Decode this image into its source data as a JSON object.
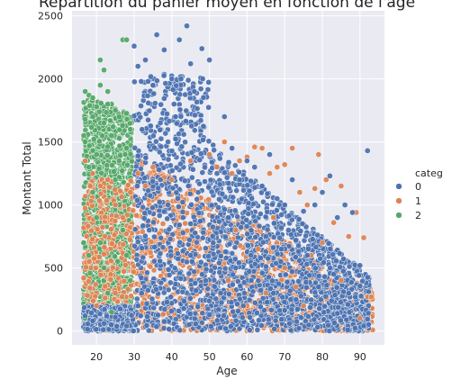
{
  "chart_data": {
    "type": "scatter",
    "title": "Répartition du panier moyen en fonction de l'âge",
    "xlabel": "Age",
    "ylabel": "Montant Total",
    "xlim": [
      13.5,
      96.5
    ],
    "ylim": [
      -110,
      2540
    ],
    "xticks": [
      "20",
      "30",
      "40",
      "50",
      "60",
      "70",
      "80",
      "90"
    ],
    "yticks": [
      "0",
      "500",
      "1000",
      "1500",
      "2000",
      "2500"
    ],
    "grid": true,
    "legend": {
      "title": "categ",
      "placement": "right"
    },
    "series": [
      {
        "name": "0",
        "color": "#4c72b0",
        "points": [
          [
            17,
            120
          ],
          [
            19,
            80
          ],
          [
            22,
            60
          ],
          [
            25,
            110
          ],
          [
            28,
            40
          ],
          [
            30,
            2260
          ],
          [
            31,
            2100
          ],
          [
            33,
            2150
          ],
          [
            35,
            1950
          ],
          [
            36,
            2350
          ],
          [
            38,
            2230
          ],
          [
            40,
            2000
          ],
          [
            42,
            2310
          ],
          [
            44,
            2420
          ],
          [
            45,
            2120
          ],
          [
            46,
            1900
          ],
          [
            48,
            2240
          ],
          [
            50,
            2150
          ],
          [
            52,
            1250
          ],
          [
            54,
            1700
          ],
          [
            56,
            1450
          ],
          [
            58,
            1200
          ],
          [
            60,
            1350
          ],
          [
            62,
            1300
          ],
          [
            64,
            1150
          ],
          [
            66,
            1400
          ],
          [
            68,
            1050
          ],
          [
            70,
            1000
          ],
          [
            72,
            1200
          ],
          [
            75,
            950
          ],
          [
            78,
            1000
          ],
          [
            80,
            1100
          ],
          [
            82,
            1230
          ],
          [
            84,
            900
          ],
          [
            86,
            1000
          ],
          [
            88,
            940
          ],
          [
            90,
            520
          ],
          [
            92,
            1430
          ],
          [
            32,
            300
          ],
          [
            34,
            800
          ],
          [
            37,
            1200
          ],
          [
            39,
            1500
          ],
          [
            41,
            1700
          ],
          [
            43,
            900
          ],
          [
            45,
            600
          ],
          [
            47,
            1100
          ],
          [
            49,
            400
          ],
          [
            51,
            700
          ],
          [
            53,
            300
          ],
          [
            55,
            900
          ],
          [
            57,
            500
          ],
          [
            59,
            200
          ],
          [
            61,
            600
          ],
          [
            63,
            400
          ],
          [
            65,
            750
          ],
          [
            67,
            300
          ],
          [
            69,
            550
          ],
          [
            71,
            800
          ],
          [
            73,
            250
          ],
          [
            76,
            600
          ],
          [
            79,
            350
          ],
          [
            83,
            450
          ],
          [
            87,
            300
          ],
          [
            91,
            40
          ]
        ]
      },
      {
        "name": "1",
        "color": "#dd8452",
        "points": [
          [
            17,
            1350
          ],
          [
            19,
            1250
          ],
          [
            21,
            1150
          ],
          [
            23,
            1200
          ],
          [
            25,
            1000
          ],
          [
            27,
            900
          ],
          [
            29,
            1100
          ],
          [
            31,
            1250
          ],
          [
            33,
            1150
          ],
          [
            35,
            1300
          ],
          [
            40,
            1200
          ],
          [
            45,
            1350
          ],
          [
            50,
            1400
          ],
          [
            52,
            1300
          ],
          [
            54,
            1500
          ],
          [
            56,
            1250
          ],
          [
            58,
            1350
          ],
          [
            60,
            1380
          ],
          [
            62,
            1460
          ],
          [
            64,
            1450
          ],
          [
            66,
            1250
          ],
          [
            68,
            1300
          ],
          [
            70,
            1320
          ],
          [
            72,
            1450
          ],
          [
            74,
            1100
          ],
          [
            76,
            1000
          ],
          [
            78,
            1130
          ],
          [
            79,
            1400
          ],
          [
            81,
            1200
          ],
          [
            83,
            860
          ],
          [
            85,
            1150
          ],
          [
            87,
            750
          ],
          [
            89,
            940
          ],
          [
            91,
            740
          ],
          [
            92,
            270
          ],
          [
            93,
            270
          ],
          [
            55,
            400
          ],
          [
            60,
            200
          ],
          [
            65,
            300
          ],
          [
            70,
            500
          ],
          [
            75,
            200
          ],
          [
            80,
            700
          ],
          [
            85,
            400
          ],
          [
            90,
            100
          ],
          [
            20,
            200
          ],
          [
            25,
            300
          ],
          [
            57,
            800
          ],
          [
            63,
            650
          ],
          [
            67,
            900
          ],
          [
            73,
            350
          ],
          [
            77,
            600
          ]
        ]
      },
      {
        "name": "2",
        "color": "#55a868",
        "points": [
          [
            17,
            1900
          ],
          [
            18,
            1870
          ],
          [
            19,
            1850
          ],
          [
            20,
            1780
          ],
          [
            21,
            2150
          ],
          [
            22,
            2070
          ],
          [
            23,
            1900
          ],
          [
            24,
            1800
          ],
          [
            25,
            1750
          ],
          [
            26,
            1700
          ],
          [
            27,
            2310
          ],
          [
            28,
            2310
          ],
          [
            29,
            1600
          ],
          [
            17,
            1500
          ],
          [
            18,
            1300
          ],
          [
            19,
            1100
          ],
          [
            20,
            900
          ],
          [
            21,
            700
          ],
          [
            22,
            500
          ],
          [
            23,
            300
          ],
          [
            24,
            150
          ],
          [
            25,
            1200
          ],
          [
            26,
            1000
          ],
          [
            27,
            800
          ],
          [
            28,
            600
          ],
          [
            29,
            400
          ],
          [
            17,
            100
          ],
          [
            18,
            600
          ],
          [
            20,
            1400
          ],
          [
            22,
            1650
          ],
          [
            24,
            1550
          ],
          [
            26,
            1350
          ],
          [
            28,
            1450
          ],
          [
            19,
            1700
          ],
          [
            21,
            1950
          ],
          [
            23,
            1800
          ]
        ]
      }
    ]
  }
}
